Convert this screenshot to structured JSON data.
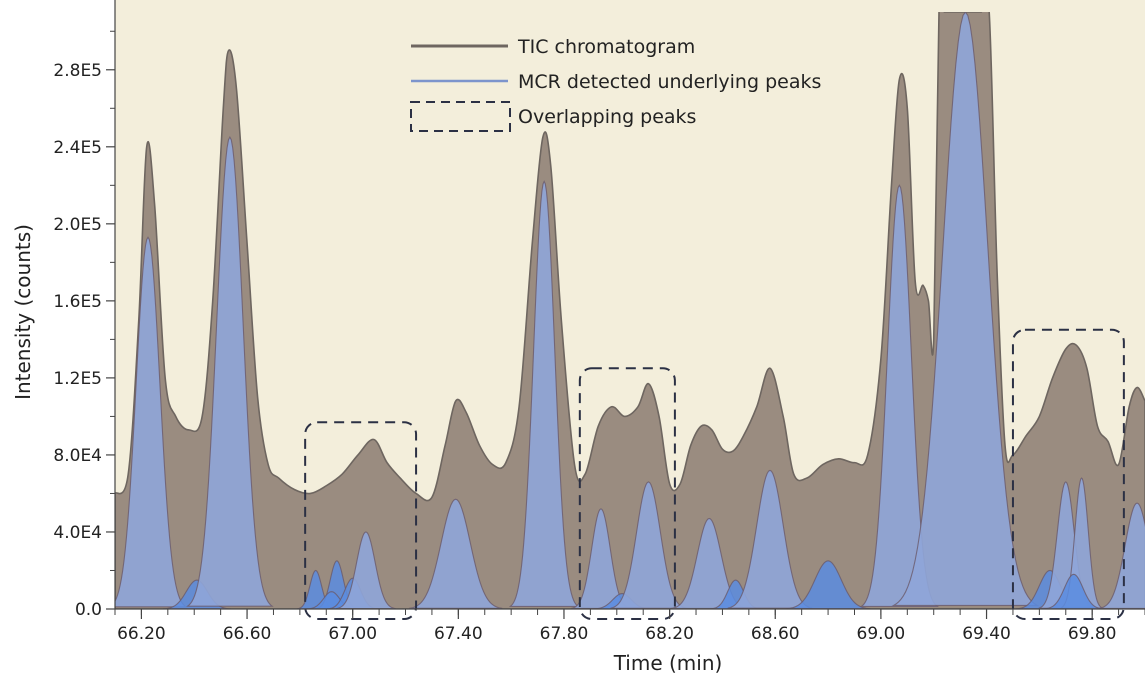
{
  "chart_data": {
    "type": "area",
    "xlabel": "Time (min)",
    "ylabel": "Intensity (counts)",
    "xlim": [
      66.1,
      70.0
    ],
    "ylim": [
      0,
      310000
    ],
    "x_ticks": [
      66.2,
      66.6,
      67.0,
      67.4,
      67.8,
      68.2,
      68.6,
      69.0,
      69.4,
      69.8
    ],
    "x_tick_labels": [
      "66.20",
      "66.60",
      "67.00",
      "67.40",
      "67.80",
      "68.20",
      "68.60",
      "69.00",
      "69.40",
      "69.80"
    ],
    "y_ticks": [
      0,
      40000,
      80000,
      120000,
      160000,
      200000,
      240000,
      280000
    ],
    "y_tick_labels": [
      "0.0",
      "4.0E4",
      "8.0E4",
      "1.2E5",
      "1.6E5",
      "2.0E5",
      "2.4E5",
      "2.8E5"
    ],
    "legend": [
      {
        "label": "TIC chromatogram",
        "style": "line",
        "color": "#6e6660"
      },
      {
        "label": "MCR detected underlying peaks",
        "style": "line",
        "color": "#7c94cc"
      },
      {
        "label": "Overlapping peaks",
        "style": "dashed-box",
        "color": "#2b3044"
      }
    ],
    "legend_position": "top-center",
    "colors": {
      "background": "#f3eedb",
      "tic_fill": "#9a8c80",
      "tic_line": "#6e6660",
      "mcr_fill": "#8fa5d8",
      "mcr_line": "#6a5a6a",
      "minor_fill": "#5a8ce0",
      "box": "#2b3044"
    },
    "series": [
      {
        "name": "TIC chromatogram",
        "x": [
          66.1,
          66.15,
          66.19,
          66.22,
          66.25,
          66.29,
          66.33,
          66.38,
          66.43,
          66.47,
          66.51,
          66.53,
          66.56,
          66.6,
          66.64,
          66.68,
          66.72,
          66.78,
          66.84,
          66.9,
          66.96,
          67.02,
          67.08,
          67.13,
          67.18,
          67.24,
          67.3,
          67.35,
          67.39,
          67.43,
          67.48,
          67.53,
          67.58,
          67.63,
          67.68,
          67.72,
          67.75,
          67.79,
          67.84,
          67.88,
          67.93,
          67.98,
          68.03,
          68.08,
          68.12,
          68.16,
          68.2,
          68.24,
          68.28,
          68.32,
          68.36,
          68.4,
          68.44,
          68.48,
          68.53,
          68.58,
          68.63,
          68.67,
          68.72,
          68.78,
          68.84,
          68.9,
          68.95,
          69.0,
          69.04,
          69.07,
          69.1,
          69.13,
          69.16,
          69.18,
          69.2,
          69.22,
          69.24,
          69.27,
          69.3,
          69.35,
          69.38,
          69.41,
          69.44,
          69.47,
          69.5,
          69.55,
          69.6,
          69.65,
          69.7,
          69.74,
          69.78,
          69.82,
          69.86,
          69.9,
          69.94,
          69.97,
          70.0
        ],
        "y": [
          60000,
          70000,
          150000,
          240000,
          210000,
          120000,
          100000,
          93000,
          100000,
          160000,
          260000,
          290000,
          270000,
          190000,
          110000,
          75000,
          68000,
          62000,
          60000,
          64000,
          70000,
          80000,
          88000,
          76000,
          68000,
          60000,
          58000,
          85000,
          108000,
          102000,
          85000,
          75000,
          76000,
          105000,
          190000,
          245000,
          230000,
          150000,
          75000,
          70000,
          95000,
          105000,
          100000,
          105000,
          117000,
          100000,
          65000,
          65000,
          85000,
          95000,
          93000,
          83000,
          82000,
          90000,
          105000,
          125000,
          100000,
          70000,
          68000,
          75000,
          78000,
          76000,
          80000,
          130000,
          220000,
          275000,
          260000,
          170000,
          168000,
          160000,
          140000,
          310000,
          310000,
          310000,
          310000,
          310000,
          310000,
          310000,
          175000,
          85000,
          80000,
          90000,
          100000,
          120000,
          135000,
          137000,
          125000,
          95000,
          87000,
          75000,
          105000,
          115000,
          108000
        ]
      },
      {
        "name": "MCR detected underlying peaks",
        "peaks": [
          {
            "center": 66.225,
            "height": 193000,
            "width": 0.045
          },
          {
            "center": 66.41,
            "height": 15000,
            "width": 0.04
          },
          {
            "center": 66.535,
            "height": 245000,
            "width": 0.05
          },
          {
            "center": 66.86,
            "height": 20000,
            "width": 0.022
          },
          {
            "center": 66.94,
            "height": 25000,
            "width": 0.025
          },
          {
            "center": 66.92,
            "height": 9000,
            "width": 0.03
          },
          {
            "center": 67.0,
            "height": 16000,
            "width": 0.03
          },
          {
            "center": 67.05,
            "height": 40000,
            "width": 0.035
          },
          {
            "center": 67.39,
            "height": 57000,
            "width": 0.055
          },
          {
            "center": 67.725,
            "height": 222000,
            "width": 0.04
          },
          {
            "center": 67.94,
            "height": 52000,
            "width": 0.035
          },
          {
            "center": 68.02,
            "height": 8000,
            "width": 0.035
          },
          {
            "center": 68.12,
            "height": 66000,
            "width": 0.045
          },
          {
            "center": 68.35,
            "height": 47000,
            "width": 0.045
          },
          {
            "center": 68.45,
            "height": 15000,
            "width": 0.03
          },
          {
            "center": 68.58,
            "height": 72000,
            "width": 0.05
          },
          {
            "center": 68.8,
            "height": 25000,
            "width": 0.05
          },
          {
            "center": 69.07,
            "height": 220000,
            "width": 0.045
          },
          {
            "center": 69.32,
            "height": 310000,
            "width": 0.085
          },
          {
            "center": 69.64,
            "height": 20000,
            "width": 0.04
          },
          {
            "center": 69.7,
            "height": 66000,
            "width": 0.032
          },
          {
            "center": 69.76,
            "height": 68000,
            "width": 0.025
          },
          {
            "center": 69.73,
            "height": 18000,
            "width": 0.035
          },
          {
            "center": 69.97,
            "height": 55000,
            "width": 0.045
          }
        ]
      }
    ],
    "annotations": [
      {
        "type": "dashed-box",
        "label": "Overlapping peaks",
        "x_range": [
          66.82,
          67.24
        ],
        "y_range": [
          0,
          97000
        ]
      },
      {
        "type": "dashed-box",
        "label": "Overlapping peaks",
        "x_range": [
          67.86,
          68.22
        ],
        "y_range": [
          0,
          125000
        ]
      },
      {
        "type": "dashed-box",
        "label": "Overlapping peaks",
        "x_range": [
          69.5,
          69.92
        ],
        "y_range": [
          0,
          145000
        ]
      }
    ]
  }
}
